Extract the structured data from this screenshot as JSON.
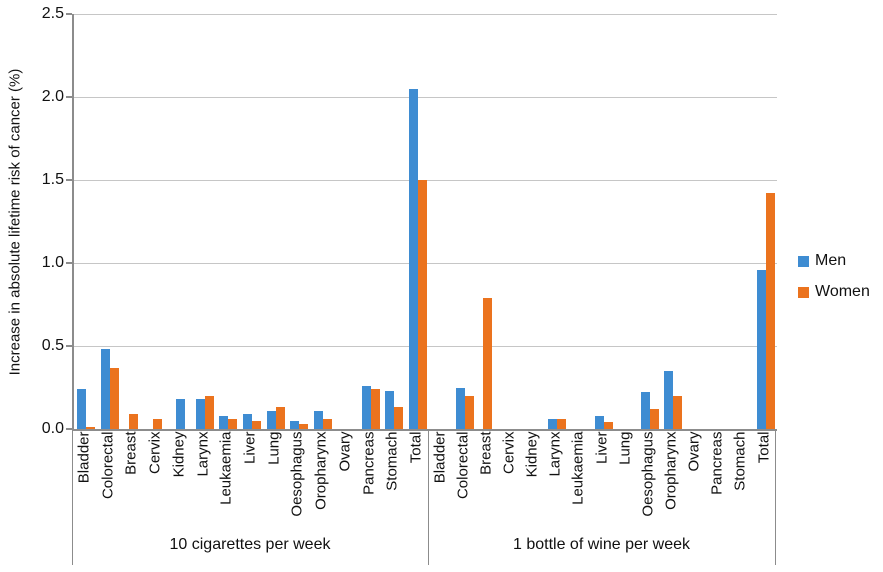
{
  "chart_data": {
    "type": "bar",
    "title": "",
    "ylabel": "Increase in absolute lifetime risk of cancer (%)",
    "xlabel": "",
    "ylim": [
      0,
      2.5
    ],
    "ytick_step": 0.5,
    "grid": true,
    "legend_position": "right",
    "categories": [
      "Bladder",
      "Colorectal",
      "Breast",
      "Cervix",
      "Kidney",
      "Larynx",
      "Leukaemia",
      "Liver",
      "Lung",
      "Oesophagus",
      "Oropharynx",
      "Ovary",
      "Pancreas",
      "Stomach",
      "Total"
    ],
    "legend": [
      {
        "name": "Men",
        "color": "#3E8CD2"
      },
      {
        "name": "Women",
        "color": "#EB731E"
      }
    ],
    "groups": [
      {
        "label": "10 cigarettes per week",
        "series": [
          {
            "name": "Men",
            "color": "#3E8CD2",
            "values": [
              0.24,
              0.48,
              0,
              0,
              0.18,
              0.18,
              0.08,
              0.09,
              0.11,
              0.05,
              0.11,
              0,
              0.26,
              0.23,
              2.05
            ]
          },
          {
            "name": "Women",
            "color": "#EB731E",
            "values": [
              0.01,
              0.37,
              0.09,
              0.06,
              0,
              0.2,
              0.06,
              0.05,
              0.13,
              0.03,
              0.06,
              0,
              0.24,
              0.13,
              1.5
            ]
          }
        ]
      },
      {
        "label": "1 bottle of wine per week",
        "series": [
          {
            "name": "Men",
            "color": "#3E8CD2",
            "values": [
              0,
              0.25,
              0,
              0,
              0,
              0.06,
              0,
              0.08,
              0,
              0.22,
              0.35,
              0,
              0,
              0,
              0.96
            ]
          },
          {
            "name": "Women",
            "color": "#EB731E",
            "values": [
              0,
              0.2,
              0.79,
              0,
              0,
              0.06,
              0,
              0.04,
              0,
              0.12,
              0.2,
              0,
              0,
              0,
              1.42
            ]
          }
        ]
      }
    ]
  }
}
